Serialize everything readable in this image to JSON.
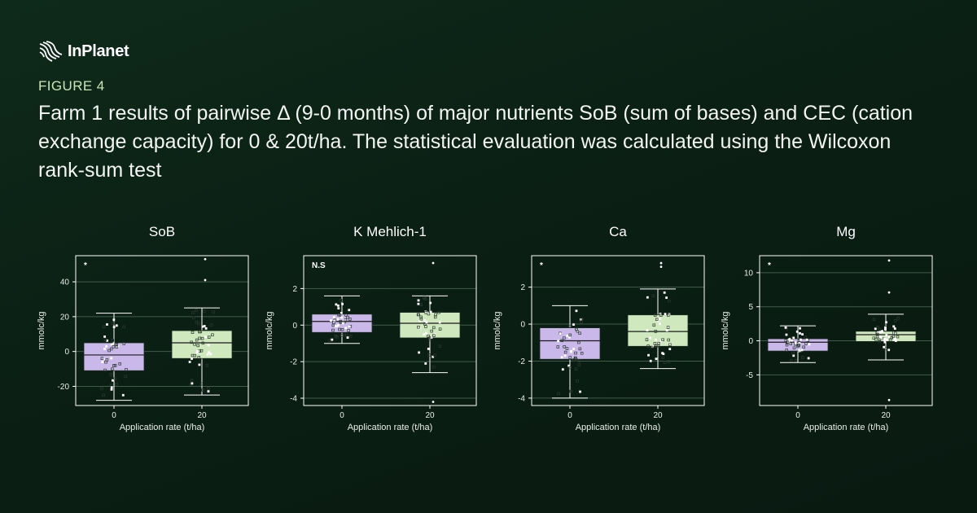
{
  "brand": {
    "name": "InPlanet"
  },
  "figure": {
    "label": "FIGURE 4",
    "title": "Farm 1 results of pairwise Δ (9-0 months) of  major nutrients SoB (sum of bases) and CEC (cation exchange capacity) for 0 & 20t/ha. The statistical evaluation was calculated using the Wilcoxon rank-sum test"
  },
  "colors": {
    "background": "#0b1f14",
    "box_0": "#cbb8ea",
    "box_20": "#cfe8bd",
    "grid": "#3f5d48",
    "text": "#e8efe9"
  },
  "chart_data": [
    {
      "type": "box",
      "title": "SoB",
      "xlabel": "Application rate (t/ha)",
      "ylabel": "mmolc/kg",
      "significance": "*",
      "ylim": [
        -31,
        55
      ],
      "yticks": [
        -20,
        0,
        20,
        40
      ],
      "grid": true,
      "groups": [
        {
          "category": "0",
          "whisker_low": -28,
          "q1": -11,
          "median": -2,
          "q3": 5,
          "whisker_high": 22
        },
        {
          "category": "20",
          "whisker_low": -25,
          "q1": -4,
          "median": 5,
          "q3": 12,
          "whisker_high": 25,
          "outliers": [
            53,
            41
          ]
        }
      ]
    },
    {
      "type": "box",
      "title": "K Mehlich-1",
      "xlabel": "Application rate (t/ha)",
      "ylabel": "mmolc/kg",
      "significance": "N.S",
      "ylim": [
        -4.4,
        3.8
      ],
      "yticks": [
        -4,
        -2,
        0,
        2
      ],
      "grid": true,
      "groups": [
        {
          "category": "0",
          "whisker_low": -1,
          "q1": -0.4,
          "median": 0.2,
          "q3": 0.6,
          "whisker_high": 1.6
        },
        {
          "category": "20",
          "whisker_low": -2.6,
          "q1": -0.7,
          "median": 0.1,
          "q3": 0.7,
          "whisker_high": 1.6,
          "outliers": [
            3.4,
            -4.2
          ]
        }
      ]
    },
    {
      "type": "box",
      "title": "Ca",
      "xlabel": "Application rate (t/ha)",
      "ylabel": "mmolc/kg",
      "significance": "*",
      "ylim": [
        -4.4,
        3.7
      ],
      "yticks": [
        -4,
        -2,
        0,
        2
      ],
      "grid": true,
      "groups": [
        {
          "category": "0",
          "whisker_low": -4,
          "q1": -1.9,
          "median": -0.9,
          "q3": -0.2,
          "whisker_high": 1
        },
        {
          "category": "20",
          "whisker_low": -2.4,
          "q1": -1.2,
          "median": -0.4,
          "q3": 0.5,
          "whisker_high": 1.9,
          "outliers": [
            3.3,
            3.1
          ]
        }
      ]
    },
    {
      "type": "box",
      "title": "Mg",
      "xlabel": "Application rate (t/ha)",
      "ylabel": "mmolc/kg",
      "significance": "*",
      "ylim": [
        -9.5,
        12.5
      ],
      "yticks": [
        -5,
        0,
        5,
        10
      ],
      "grid": true,
      "groups": [
        {
          "category": "0",
          "whisker_low": -3.2,
          "q1": -1.5,
          "median": -0.2,
          "q3": 0.3,
          "whisker_high": 2.2
        },
        {
          "category": "20",
          "whisker_low": -2.8,
          "q1": -0.1,
          "median": 0.9,
          "q3": 1.4,
          "whisker_high": 3.9,
          "outliers": [
            11.8,
            7.1,
            -8.7
          ]
        }
      ]
    }
  ]
}
